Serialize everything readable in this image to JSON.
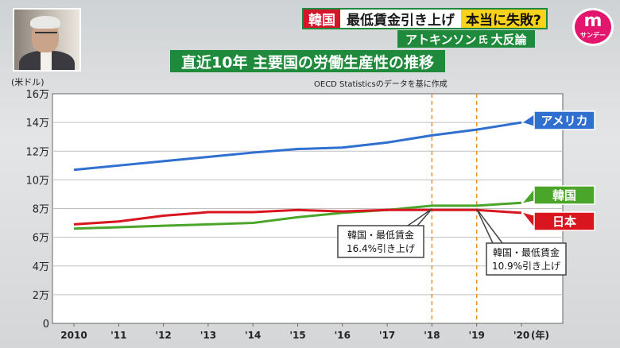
{
  "header": {
    "tag_country": "韓国",
    "headline_text": "最低賃金引き上げ",
    "headline_emphasis": "本当に失敗?",
    "subhead_name": "アトキンソン",
    "subhead_honorific": "氏",
    "subhead_text": "大反論"
  },
  "logo": {
    "mark": "m",
    "text": "サンデー"
  },
  "chart_title": "直近10年 主要国の労働生産性の推移",
  "source_note": "OECD Statisticsのデータを基に作成",
  "colors": {
    "usa": "#2f6fd0",
    "korea": "#4ba52a",
    "japan": "#d9161f",
    "annotation": "#e8912a",
    "title_bg": "#1f8a3c"
  },
  "chart_data": {
    "type": "line",
    "ylabel": "(米ドル)",
    "xlabel": "(年)",
    "categories": [
      "2010",
      "'11",
      "'12",
      "'13",
      "'14",
      "'15",
      "'16",
      "'17",
      "'18",
      "'19",
      "'20"
    ],
    "y_ticks": [
      "0",
      "2万",
      "4万",
      "6万",
      "8万",
      "10万",
      "12万",
      "14万",
      "16万"
    ],
    "ylim": [
      0,
      160000
    ],
    "grid": true,
    "series": [
      {
        "name": "アメリカ",
        "key": "usa",
        "values": [
          107000,
          110000,
          113000,
          116000,
          119000,
          121500,
          122500,
          126000,
          131000,
          135000,
          140000
        ]
      },
      {
        "name": "韓国",
        "key": "korea",
        "values": [
          66000,
          67000,
          68000,
          69000,
          70000,
          74000,
          77000,
          79000,
          82000,
          82000,
          84000
        ]
      },
      {
        "name": "日本",
        "key": "japan",
        "values": [
          69000,
          71000,
          75000,
          77500,
          77500,
          79000,
          78000,
          79000,
          79000,
          79000,
          77000
        ]
      }
    ],
    "annotations": [
      {
        "at": "'18",
        "text_line1": "韓国・最低賃金",
        "text_line2": "16.4%引き上げ"
      },
      {
        "at": "'19",
        "text_line1": "韓国・最低賃金",
        "text_line2": "10.9%引き上げ"
      }
    ]
  }
}
